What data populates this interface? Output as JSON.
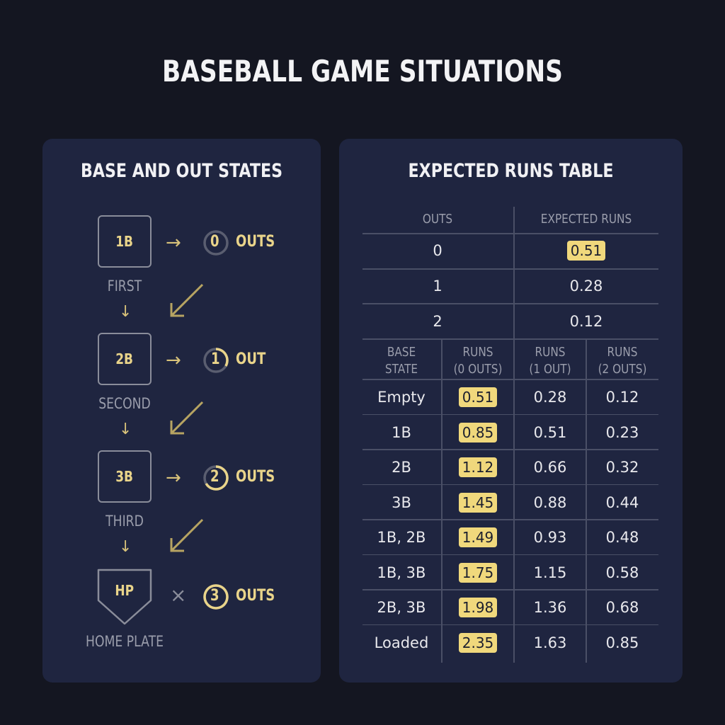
{
  "title": "BASEBALL GAME SITUATIONS",
  "left_panel": {
    "title": "BASE AND OUT STATES",
    "bases": [
      {
        "code": "1B",
        "label": "FIRST"
      },
      {
        "code": "2B",
        "label": "SECOND"
      },
      {
        "code": "3B",
        "label": "THIRD"
      },
      {
        "code": "HP",
        "label": "HOME PLATE"
      }
    ],
    "outs": [
      {
        "count": "0",
        "label": "OUTS",
        "fill": 0
      },
      {
        "count": "1",
        "label": "OUT",
        "fill": 0.333
      },
      {
        "count": "2",
        "label": "OUTS",
        "fill": 0.667
      },
      {
        "count": "3",
        "label": "OUTS",
        "fill": 1
      }
    ],
    "arrow_icon": "→",
    "down_icon": "↓",
    "x_icon": "×",
    "accent_color": "#e9d48a",
    "highlight_color": "#f0d87c"
  },
  "right_panel": {
    "title": "EXPECTED RUNS TABLE",
    "summary": {
      "headers": [
        "OUTS",
        "EXPECTED RUNS"
      ],
      "rows": [
        {
          "outs": "0",
          "runs": "0.51",
          "highlight": true
        },
        {
          "outs": "1",
          "runs": "0.28",
          "highlight": false
        },
        {
          "outs": "2",
          "runs": "0.12",
          "highlight": false
        }
      ]
    },
    "detail": {
      "headers": [
        [
          "BASE",
          "STATE"
        ],
        [
          "RUNS",
          "(0 OUTS)"
        ],
        [
          "RUNS",
          "(1 OUT)"
        ],
        [
          "RUNS",
          "(2 OUTS)"
        ]
      ],
      "rows": [
        [
          "Empty",
          "0.51",
          "0.28",
          "0.12"
        ],
        [
          "1B",
          "0.85",
          "0.51",
          "0.23"
        ],
        [
          "2B",
          "1.12",
          "0.66",
          "0.32"
        ],
        [
          "3B",
          "1.45",
          "0.88",
          "0.44"
        ],
        [
          "1B, 2B",
          "1.49",
          "0.93",
          "0.48"
        ],
        [
          "1B, 3B",
          "1.75",
          "1.15",
          "0.58"
        ],
        [
          "2B, 3B",
          "1.98",
          "1.36",
          "0.68"
        ],
        [
          "Loaded",
          "2.35",
          "1.63",
          "0.85"
        ]
      ]
    }
  }
}
